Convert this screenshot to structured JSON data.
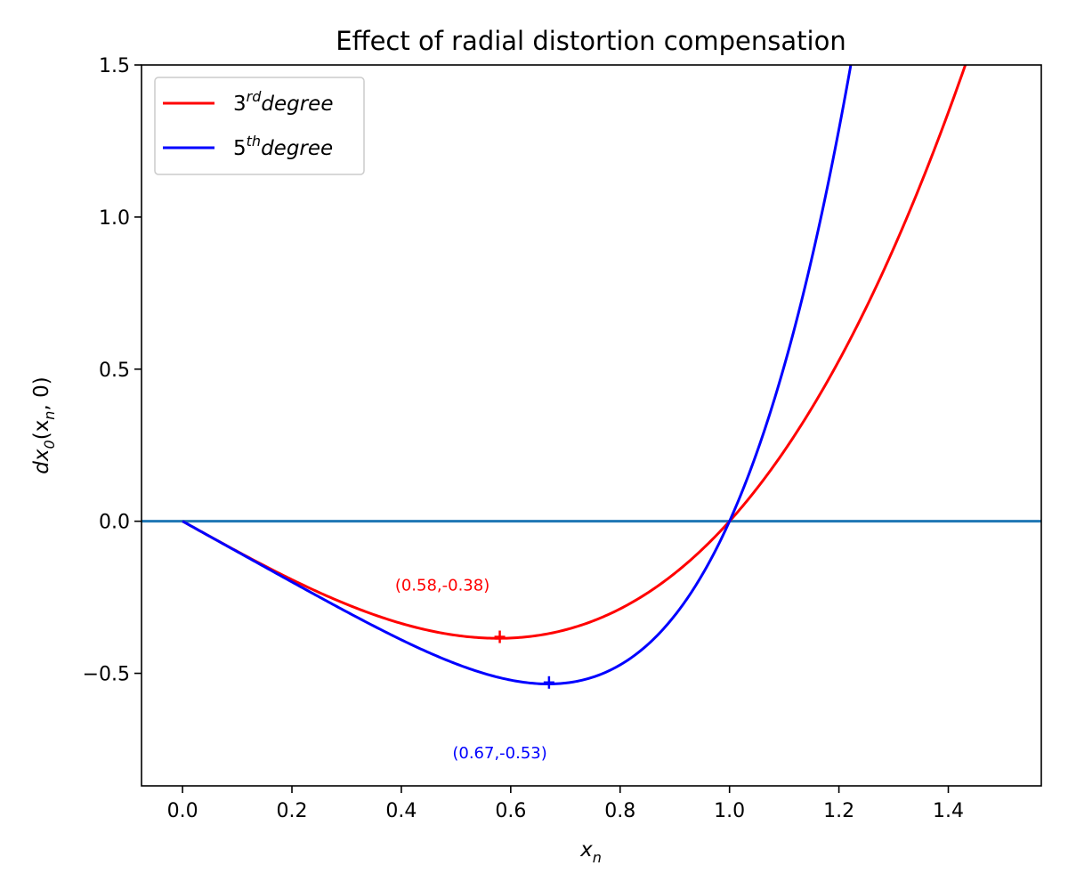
{
  "chart_data": {
    "type": "line",
    "title": "Effect of radial distortion compensation",
    "xlabel": "x",
    "xlabel_sub": "n",
    "ylabel": "dx",
    "ylabel_sub": "0",
    "ylabel_args": "(x",
    "ylabel_args_sub": "n",
    "ylabel_args_tail": ", 0)",
    "xlim": [
      -0.075,
      1.57
    ],
    "ylim": [
      -0.87,
      1.5
    ],
    "x_ticks": [
      0.0,
      0.2,
      0.4,
      0.6,
      0.8,
      1.0,
      1.2,
      1.4
    ],
    "x_tick_labels": [
      "0.0",
      "0.2",
      "0.4",
      "0.6",
      "0.8",
      "1.0",
      "1.2",
      "1.4"
    ],
    "y_ticks": [
      -0.5,
      0.0,
      0.5,
      1.0,
      1.5
    ],
    "y_tick_labels": [
      "−0.5",
      "0.0",
      "0.5",
      "1.0",
      "1.5"
    ],
    "grid": false,
    "legend_position": "top-left",
    "series": [
      {
        "name": "3rd degree",
        "legend_num": "3",
        "legend_sup": "rd",
        "legend_word": "degree",
        "color": "#ff0000",
        "coefficients": [
          -1.0,
          0.0,
          1.0
        ],
        "x_range": [
          0.0,
          1.57
        ],
        "minimum": {
          "x": 0.58,
          "y": -0.38
        },
        "annotation": {
          "text": "(0.58,-0.38)",
          "x": 0.475,
          "y": -0.228
        }
      },
      {
        "name": "5th degree",
        "legend_num": "5",
        "legend_sup": "th",
        "legend_word": "degree",
        "color": "#0000ff",
        "coefficients": [
          -1.0,
          0.0,
          0.0,
          0.0,
          1.0
        ],
        "x_range": [
          0.0,
          1.57
        ],
        "minimum": {
          "x": 0.67,
          "y": -0.53
        },
        "annotation": {
          "text": "(0.67,-0.53)",
          "x": 0.58,
          "y": -0.78
        }
      }
    ],
    "reference_line": {
      "y": 0.0,
      "color": "#1f77b4"
    }
  }
}
